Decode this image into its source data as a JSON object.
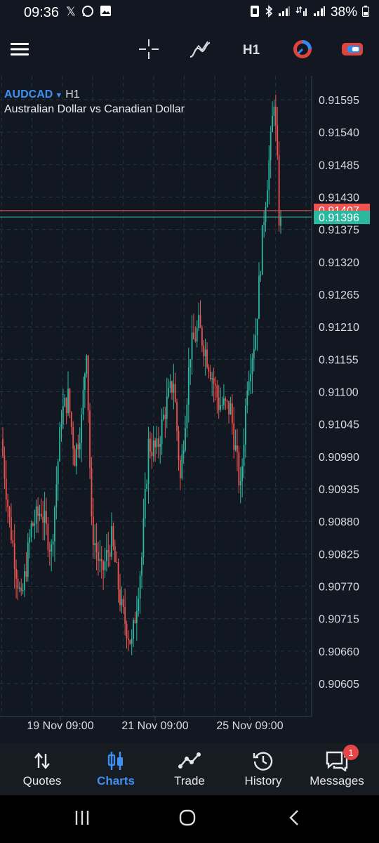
{
  "status_bar": {
    "time": "09:36",
    "left_icons": [
      "x-icon",
      "whatsapp-icon",
      "gallery-icon"
    ],
    "battery": "38%"
  },
  "toolbar": {
    "menu_icon": "hamburger-menu-icon",
    "crosshair_icon": "crosshair-icon",
    "indicators_icon": "indicators-icon",
    "timeframe": "H1",
    "theme_icon": "color-scheme-icon",
    "trade_icon": "one-click-trade-icon"
  },
  "chart": {
    "symbol": "AUDCAD",
    "timeframe": "H1",
    "description": "Australian Dollar vs Canadian Dollar",
    "bid_price": "0.91396",
    "ask_price": "0.91407",
    "colors": {
      "up": "#2bb8a0",
      "down": "#ef5350",
      "background": "#121822",
      "grid": "#2a3342",
      "bid_line": "#2bb8a0",
      "ask_line": "#ef5350"
    }
  },
  "chart_data": {
    "type": "candlestick",
    "y_ticks": [
      "0.91595",
      "0.91540",
      "0.91485",
      "0.91430",
      "0.91375",
      "0.91320",
      "0.91265",
      "0.91210",
      "0.91155",
      "0.91100",
      "0.91045",
      "0.90990",
      "0.90935",
      "0.90880",
      "0.90825",
      "0.90770",
      "0.90715",
      "0.90660",
      "0.90605"
    ],
    "ylim": [
      0.9056,
      0.9166
    ],
    "x_labels": [
      "19 Nov 09:00",
      "21 Nov 09:00",
      "25 Nov 09:00"
    ],
    "grid": true,
    "anchors": [
      [
        0,
        0.9102
      ],
      [
        5,
        0.9088
      ],
      [
        12,
        0.9074
      ],
      [
        18,
        0.9087
      ],
      [
        24,
        0.909
      ],
      [
        30,
        0.9083
      ],
      [
        36,
        0.9106
      ],
      [
        40,
        0.9109
      ],
      [
        44,
        0.9099
      ],
      [
        48,
        0.9105
      ],
      [
        51,
        0.9118
      ],
      [
        54,
        0.9087
      ],
      [
        60,
        0.9079
      ],
      [
        66,
        0.9085
      ],
      [
        72,
        0.9073
      ],
      [
        78,
        0.9067
      ],
      [
        84,
        0.9082
      ],
      [
        88,
        0.9101
      ],
      [
        93,
        0.91
      ],
      [
        98,
        0.9107
      ],
      [
        103,
        0.9112
      ],
      [
        107,
        0.9095
      ],
      [
        113,
        0.9117
      ],
      [
        118,
        0.9121
      ],
      [
        124,
        0.9115
      ],
      [
        130,
        0.9108
      ],
      [
        137,
        0.9107
      ],
      [
        143,
        0.9093
      ],
      [
        147,
        0.9112
      ],
      [
        152,
        0.912
      ],
      [
        157,
        0.914
      ],
      [
        161,
        0.9152
      ],
      [
        163,
        0.916
      ],
      [
        165,
        0.9148
      ],
      [
        166,
        0.91396
      ]
    ]
  },
  "bottom_nav": [
    {
      "key": "quotes",
      "label": "Quotes",
      "icon": "quotes-arrows-icon",
      "active": false
    },
    {
      "key": "charts",
      "label": "Charts",
      "icon": "candlestick-icon",
      "active": true
    },
    {
      "key": "trade",
      "label": "Trade",
      "icon": "trade-line-icon",
      "active": false
    },
    {
      "key": "history",
      "label": "History",
      "icon": "history-clock-icon",
      "active": false
    },
    {
      "key": "messages",
      "label": "Messages",
      "icon": "messages-chat-icon",
      "active": false,
      "badge": "1"
    }
  ],
  "system_nav": [
    "recent-apps-icon",
    "home-icon",
    "back-icon"
  ]
}
